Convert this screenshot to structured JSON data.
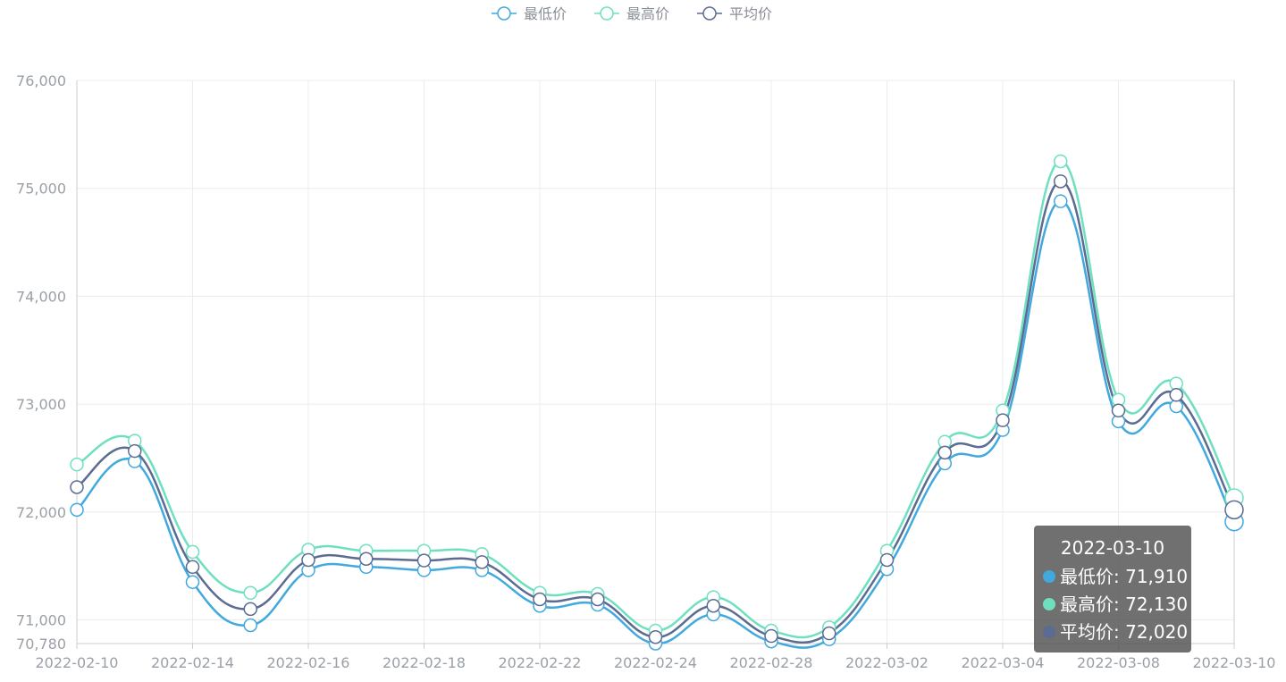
{
  "chart_data": {
    "type": "line",
    "smooth": true,
    "x": [
      "2022-02-10",
      "2022-02-11",
      "2022-02-14",
      "2022-02-15",
      "2022-02-16",
      "2022-02-17",
      "2022-02-18",
      "2022-02-21",
      "2022-02-22",
      "2022-02-23",
      "2022-02-24",
      "2022-02-25",
      "2022-02-28",
      "2022-03-01",
      "2022-03-02",
      "2022-03-03",
      "2022-03-04",
      "2022-03-07",
      "2022-03-08",
      "2022-03-09",
      "2022-03-10"
    ],
    "x_tick_labels": [
      "2022-02-10",
      "2022-02-14",
      "2022-02-16",
      "2022-02-18",
      "2022-02-22",
      "2022-02-24",
      "2022-02-28",
      "2022-03-02",
      "2022-03-04",
      "2022-03-08",
      "2022-03-10"
    ],
    "x_tick_indices": [
      0,
      2,
      4,
      6,
      8,
      10,
      12,
      14,
      16,
      18,
      20
    ],
    "y_ticks": [
      {
        "value": 70780,
        "label": "70,780"
      },
      {
        "value": 71000,
        "label": "71,000"
      },
      {
        "value": 72000,
        "label": "72,000"
      },
      {
        "value": 73000,
        "label": "73,000"
      },
      {
        "value": 74000,
        "label": "74,000"
      },
      {
        "value": 75000,
        "label": "75,000"
      },
      {
        "value": 76000,
        "label": "76,000"
      }
    ],
    "ylim": [
      70780,
      76000
    ],
    "grid": true,
    "legend_position": "top-center",
    "series": [
      {
        "name": "最低价",
        "color": "#41a9dd",
        "values": [
          72020,
          72470,
          71350,
          70950,
          71460,
          71490,
          71460,
          71460,
          71130,
          71140,
          70780,
          71050,
          70800,
          70820,
          71470,
          72450,
          72760,
          74880,
          72840,
          72980,
          71910
        ]
      },
      {
        "name": "最高价",
        "color": "#6ee0c0",
        "values": [
          72440,
          72660,
          71630,
          71250,
          71650,
          71640,
          71640,
          71610,
          71250,
          71240,
          70900,
          71210,
          70900,
          70930,
          71640,
          72650,
          72940,
          75250,
          73040,
          73190,
          72130
        ]
      },
      {
        "name": "平均价",
        "color": "#5c6b91",
        "values": [
          72230,
          72565,
          71490,
          71100,
          71555,
          71565,
          71550,
          71535,
          71190,
          71190,
          70840,
          71130,
          70850,
          70875,
          71555,
          72550,
          72850,
          75065,
          72940,
          73085,
          72020
        ]
      }
    ],
    "tooltip": {
      "title": "2022-03-10",
      "rows": [
        {
          "label": "最低价: 71,910",
          "color": "#41a9dd"
        },
        {
          "label": "最高价: 72,130",
          "color": "#6ee0c0"
        },
        {
          "label": "平均价: 72,020",
          "color": "#5c6b91"
        }
      ]
    }
  }
}
